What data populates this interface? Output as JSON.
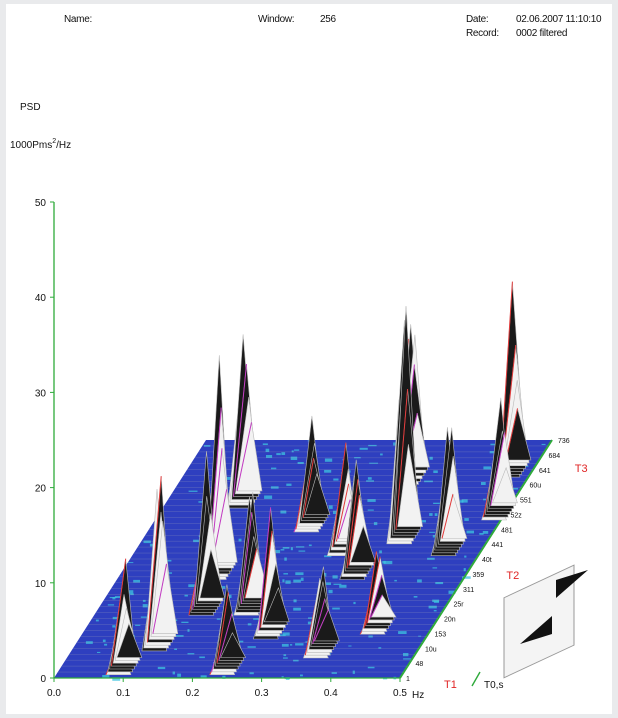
{
  "header": {
    "name_label": "Name:",
    "window_label": "Window:",
    "window_value": "256",
    "date_label": "Date:",
    "date_value": "02.06.2007 11:10:10",
    "record_label": "Record:",
    "record_value": "0002 filtered"
  },
  "chart_data": {
    "type": "waterfall-3d",
    "ylabel_line1": "PSD",
    "ylabel_line2": "1000Pms",
    "ylabel_sup": "2",
    "ylabel_suffix": "/Hz",
    "xlabel": "Hz",
    "zlabel": "T0,s",
    "yticks": [
      "50",
      "40",
      "30",
      "20",
      "10",
      "0"
    ],
    "xticks": [
      "0.0",
      "0.1",
      "0.2",
      "0.3",
      "0.4",
      "0.5"
    ],
    "zticks": [
      "1",
      "48",
      "10u",
      "153",
      "20n",
      "25r",
      "311",
      "359",
      "40t",
      "441",
      "481",
      "52z",
      "551",
      "60u",
      "641",
      "684",
      "736"
    ],
    "markers": [
      "T1",
      "T2",
      "T3"
    ],
    "ylim": [
      0,
      50
    ],
    "xlim": [
      0.0,
      0.5
    ],
    "peaks": [
      {
        "x": 0.09,
        "z": 0.05,
        "h": 10
      },
      {
        "x": 0.12,
        "z": 0.15,
        "h": 20
      },
      {
        "x": 0.14,
        "z": 0.45,
        "h": 22
      },
      {
        "x": 0.11,
        "z": 0.75,
        "h": 19
      },
      {
        "x": 0.155,
        "z": 0.3,
        "h": 15
      },
      {
        "x": 0.24,
        "z": 0.05,
        "h": 9
      },
      {
        "x": 0.22,
        "z": 0.3,
        "h": 14
      },
      {
        "x": 0.23,
        "z": 0.65,
        "h": 12
      },
      {
        "x": 0.27,
        "z": 0.2,
        "h": 12
      },
      {
        "x": 0.3,
        "z": 0.55,
        "h": 11
      },
      {
        "x": 0.33,
        "z": 0.85,
        "h": 18
      },
      {
        "x": 0.34,
        "z": 0.45,
        "h": 13
      },
      {
        "x": 0.375,
        "z": 0.6,
        "h": 27
      },
      {
        "x": 0.36,
        "z": 0.12,
        "h": 9
      },
      {
        "x": 0.42,
        "z": 0.22,
        "h": 8
      },
      {
        "x": 0.45,
        "z": 0.55,
        "h": 14
      },
      {
        "x": 0.47,
        "z": 0.88,
        "h": 18
      },
      {
        "x": 0.49,
        "z": 0.7,
        "h": 12
      }
    ],
    "colors": {
      "floor": "#2e3fbf",
      "floor_light": "#3ec4e0",
      "axis_green": "#2eaa3a",
      "mesh": "#b9b9b9",
      "peak_dark": "#1a1a1a",
      "accent_red": "#e23b3b",
      "accent_magenta": "#c33bc3",
      "marker_red": "#e02424"
    }
  }
}
